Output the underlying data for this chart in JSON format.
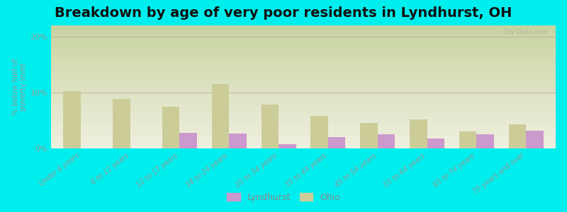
{
  "title": "Breakdown by age of very poor residents in Lyndhurst, OH",
  "ylabel": "% below half of\npoverty level",
  "categories": [
    "Under 6 years",
    "6 to 11 years",
    "12 to 17 years",
    "18 to 24 years",
    "25 to 34 years",
    "35 to 44 years",
    "45 to 54 years",
    "55 to 64 years",
    "65 to 74 years",
    "75 years and over"
  ],
  "lyndhurst_values": [
    0,
    0,
    2.8,
    2.7,
    0.8,
    2.0,
    2.5,
    1.8,
    2.5,
    3.2
  ],
  "ohio_values": [
    10.3,
    8.8,
    7.5,
    11.5,
    7.8,
    5.8,
    4.5,
    5.2,
    3.0,
    4.3
  ],
  "lyndhurst_color": "#cc99cc",
  "ohio_color": "#cccc99",
  "background_color": "#00eeee",
  "plot_bg_top": "#c8d4a0",
  "plot_bg_bottom": "#f0f0e0",
  "ylim": [
    0,
    22
  ],
  "yticks": [
    0,
    10,
    20
  ],
  "ytick_labels": [
    "0%",
    "10%",
    "20%"
  ],
  "title_fontsize": 14,
  "legend_labels": [
    "Lyndhurst",
    "Ohio"
  ],
  "bar_width": 0.35,
  "watermark": "City-Data.com"
}
